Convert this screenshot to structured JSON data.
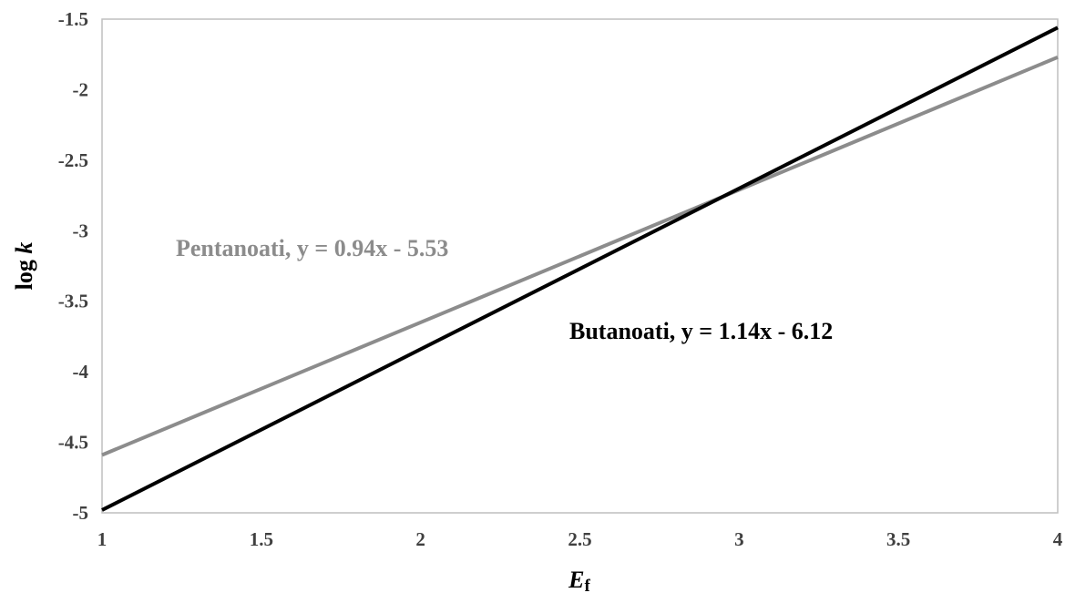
{
  "chart_data": {
    "type": "line",
    "title": "",
    "xlabel": {
      "main": "E",
      "sub": "f"
    },
    "ylabel": {
      "prefix": "log ",
      "italic": "k"
    },
    "xlim": [
      1,
      4
    ],
    "ylim": [
      -5,
      -1.5
    ],
    "x_ticks": [
      "1",
      "1.5",
      "2",
      "2.5",
      "3",
      "3.5",
      "4"
    ],
    "y_ticks": [
      "-1.5",
      "-2",
      "-2.5",
      "-3",
      "-3.5",
      "-4",
      "-4.5",
      "-5"
    ],
    "grid": false,
    "legend": "none",
    "series": [
      {
        "name": "Butanoati",
        "equation": "Butanoati, y = 1.14x - 6.12",
        "color": "#000000",
        "x": [
          1,
          4
        ],
        "y": [
          -4.98,
          -1.56
        ]
      },
      {
        "name": "Pentanoati",
        "equation": "Pentanoati, y = 0.94x - 5.53",
        "color": "#8c8c8c",
        "x": [
          1,
          4
        ],
        "y": [
          -4.59,
          -1.77
        ]
      }
    ]
  }
}
